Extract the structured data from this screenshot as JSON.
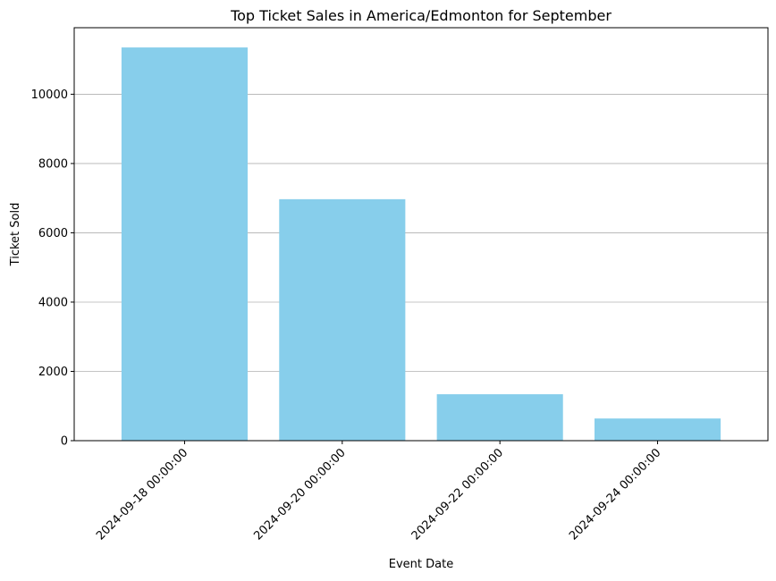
{
  "chart_data": {
    "type": "bar",
    "title": "Top Ticket Sales in America/Edmonton for September",
    "xlabel": "Event Date",
    "ylabel": "Ticket Sold",
    "categories": [
      "2024-09-18 00:00:00",
      "2024-09-20 00:00:00",
      "2024-09-22 00:00:00",
      "2024-09-24 00:00:00"
    ],
    "values": [
      11350,
      6970,
      1340,
      640
    ],
    "ylim": [
      0,
      11920
    ],
    "yticks": [
      0,
      2000,
      4000,
      6000,
      8000,
      10000
    ],
    "ytick_labels": [
      "0",
      "2000",
      "4000",
      "6000",
      "8000",
      "10000"
    ],
    "grid": "horizontal",
    "legend": "none",
    "x_tick_rotation": 45,
    "colors": {
      "bar": "#87ceeb",
      "grid": "#b0b0b0",
      "axes": "#000000"
    }
  }
}
